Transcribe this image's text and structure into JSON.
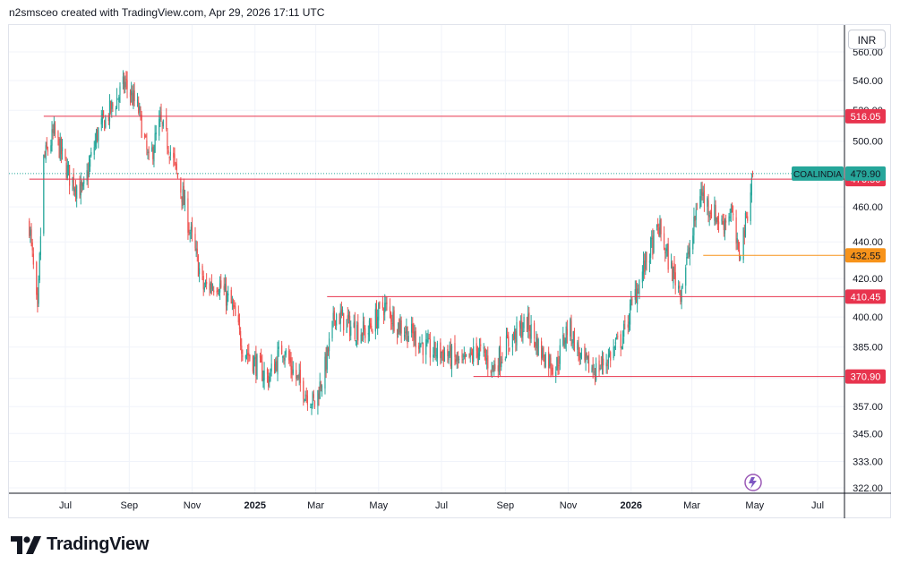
{
  "header": {
    "caption": "n2smsceo created with TradingView.com, Apr 29, 2026 17:11 UTC"
  },
  "toolbar": {
    "currency": "INR"
  },
  "footer": {
    "brand": "TradingView"
  },
  "chart_data": {
    "type": "candlestick",
    "symbol": "COALINDIA",
    "currency": "INR",
    "last_price": 479.9,
    "scale": "log",
    "grid": true,
    "x_ticks": [
      "Jul",
      "Sep",
      "Nov",
      "2025",
      "Mar",
      "May",
      "Jul",
      "Sep",
      "Nov",
      "2026",
      "Mar",
      "May",
      "Jul"
    ],
    "y_ticks": [
      322.0,
      333.0,
      345.0,
      357.0,
      370.0,
      385.0,
      400.0,
      420.0,
      440.0,
      460.0,
      500.0,
      520.0,
      540.0,
      560.0
    ],
    "price_path": [
      [
        "2024-05-27",
        450
      ],
      [
        "2024-06-04",
        400
      ],
      [
        "2024-06-10",
        488
      ],
      [
        "2024-06-20",
        505
      ],
      [
        "2024-07-05",
        478
      ],
      [
        "2024-07-18",
        468
      ],
      [
        "2024-08-01",
        505
      ],
      [
        "2024-08-14",
        520
      ],
      [
        "2024-08-28",
        538
      ],
      [
        "2024-09-10",
        520
      ],
      [
        "2024-09-20",
        486
      ],
      [
        "2024-10-01",
        512
      ],
      [
        "2024-10-10",
        496
      ],
      [
        "2024-10-22",
        468
      ],
      [
        "2024-10-30",
        446
      ],
      [
        "2024-11-12",
        415
      ],
      [
        "2024-11-26",
        418
      ],
      [
        "2024-12-10",
        405
      ],
      [
        "2024-12-20",
        385
      ],
      [
        "2025-01-03",
        376
      ],
      [
        "2025-01-14",
        370
      ],
      [
        "2025-01-28",
        385
      ],
      [
        "2025-02-10",
        370
      ],
      [
        "2025-02-28",
        358
      ],
      [
        "2025-03-10",
        375
      ],
      [
        "2025-03-20",
        402
      ],
      [
        "2025-04-04",
        395
      ],
      [
        "2025-04-20",
        392
      ],
      [
        "2025-05-06",
        406
      ],
      [
        "2025-05-20",
        396
      ],
      [
        "2025-06-05",
        390
      ],
      [
        "2025-06-20",
        383
      ],
      [
        "2025-07-05",
        382
      ],
      [
        "2025-07-22",
        376
      ],
      [
        "2025-08-05",
        384
      ],
      [
        "2025-08-20",
        375
      ],
      [
        "2025-09-05",
        388
      ],
      [
        "2025-09-22",
        397
      ],
      [
        "2025-10-05",
        383
      ],
      [
        "2025-10-20",
        375
      ],
      [
        "2025-11-01",
        396
      ],
      [
        "2025-11-15",
        377
      ],
      [
        "2025-11-28",
        374
      ],
      [
        "2025-12-10",
        380
      ],
      [
        "2025-12-24",
        390
      ],
      [
        "2026-01-05",
        412
      ],
      [
        "2026-01-16",
        430
      ],
      [
        "2026-01-28",
        448
      ],
      [
        "2026-02-08",
        426
      ],
      [
        "2026-02-18",
        414
      ],
      [
        "2026-03-02",
        444
      ],
      [
        "2026-03-08",
        470
      ],
      [
        "2026-03-20",
        458
      ],
      [
        "2026-03-30",
        450
      ],
      [
        "2026-04-08",
        458
      ],
      [
        "2026-04-15",
        432
      ],
      [
        "2026-04-22",
        450
      ],
      [
        "2026-04-29",
        479.9
      ]
    ],
    "horizontal_lines": [
      {
        "label": "516.05",
        "value": 516.05,
        "color": "#e8344e",
        "start": "2024-06-10"
      },
      {
        "label": "476.50",
        "value": 476.5,
        "color": "#e8344e",
        "start": "2024-05-27"
      },
      {
        "label": "432.55",
        "value": 432.55,
        "color": "#f7931a",
        "start": "2026-03-12"
      },
      {
        "label": "410.45",
        "value": 410.45,
        "color": "#e8344e",
        "start": "2025-03-12"
      },
      {
        "label": "370.90",
        "value": 370.9,
        "color": "#e8344e",
        "start": "2025-08-01"
      }
    ],
    "colors": {
      "up": "#26a69a",
      "down": "#ef5350",
      "symbol_tag": "#26a69a",
      "grid": "#f0f3fa"
    }
  }
}
